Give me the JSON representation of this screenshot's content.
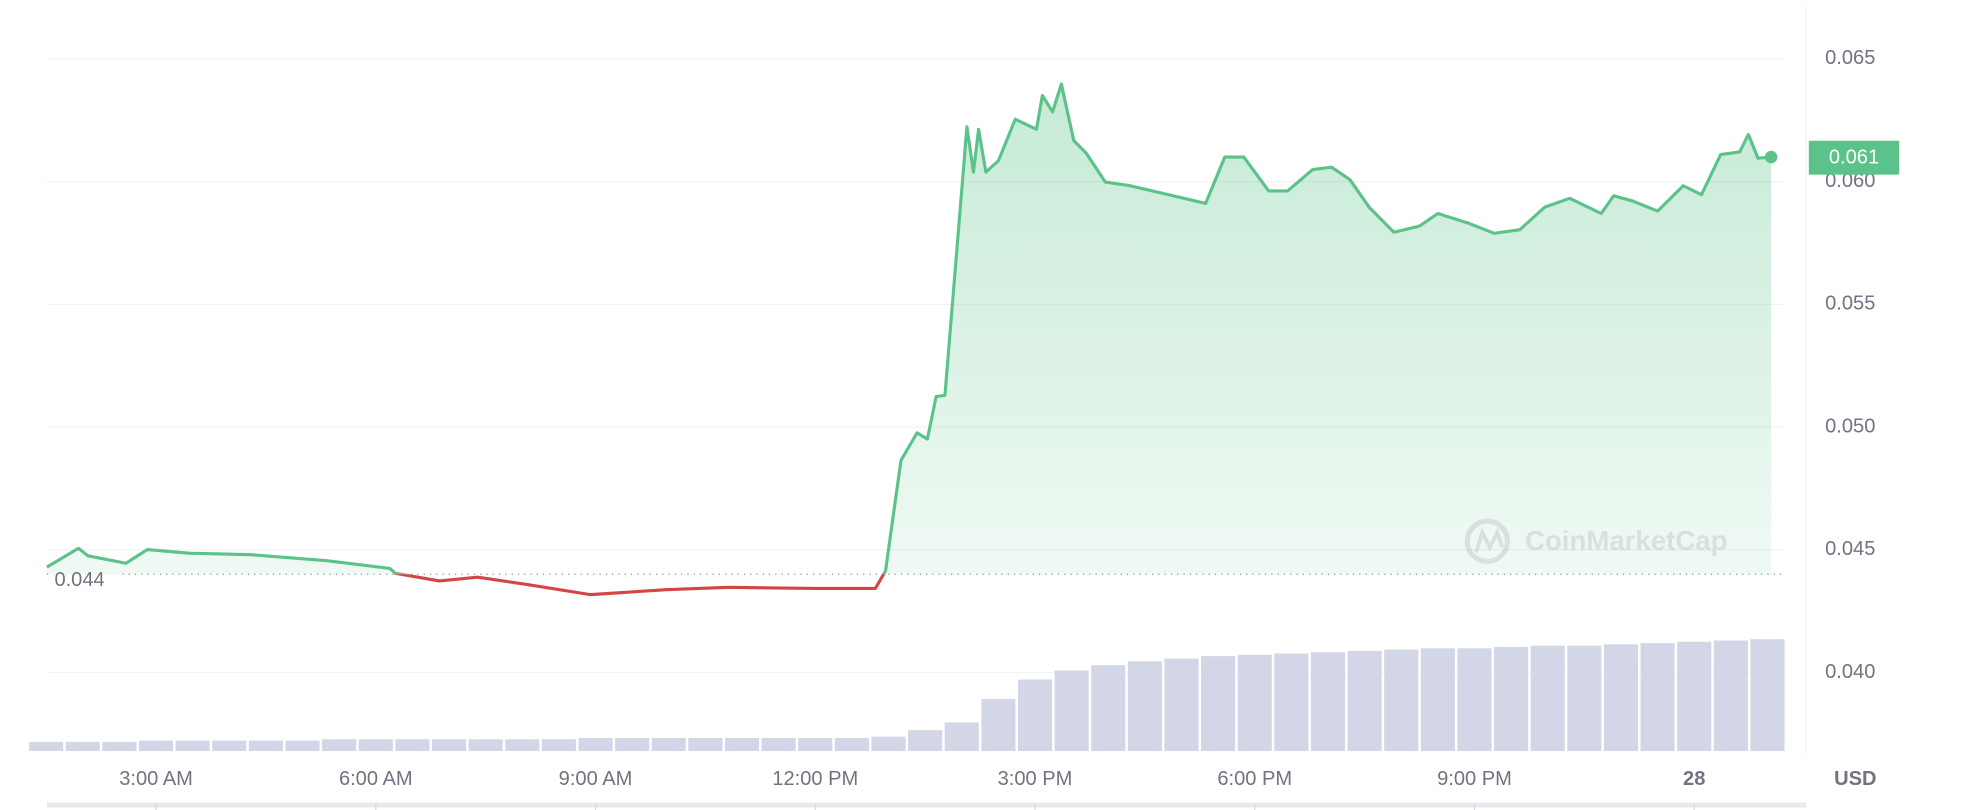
{
  "chart_data": {
    "type": "line",
    "series": [
      {
        "color": "#5bc389",
        "color_below": "#d64545",
        "x": [
          1.51,
          1.94,
          2.07,
          2.59,
          2.88,
          3.45,
          4.3,
          5.33,
          6.19,
          6.27,
          6.87,
          7.39,
          8.07,
          8.93,
          9.96,
          10.82,
          12.02,
          12.82,
          12.96,
          13.17,
          13.39,
          13.53,
          13.65,
          13.77,
          14.07,
          14.16,
          14.23,
          14.33,
          14.5,
          14.73,
          15.02,
          15.1,
          15.24,
          15.36,
          15.53,
          15.7,
          15.96,
          16.3,
          16.82,
          17.33,
          17.59,
          17.85,
          18.19,
          18.45,
          18.79,
          19.05,
          19.3,
          19.56,
          19.9,
          20.25,
          20.5,
          20.93,
          21.27,
          21.62,
          21.96,
          22.3,
          22.73,
          22.9,
          23.16,
          23.5,
          23.85,
          24.1,
          24.36,
          24.62,
          24.74,
          24.87,
          25.05
        ],
        "values": [
          0.04429,
          0.04506,
          0.04475,
          0.04445,
          0.04501,
          0.04486,
          0.0448,
          0.04455,
          0.04424,
          0.04404,
          0.04373,
          0.04388,
          0.04358,
          0.04317,
          0.04337,
          0.04347,
          0.04342,
          0.04342,
          0.04414,
          0.04864,
          0.04976,
          0.04951,
          0.05124,
          0.05129,
          0.06223,
          0.06039,
          0.06213,
          0.06039,
          0.06085,
          0.06254,
          0.06213,
          0.06351,
          0.06284,
          0.06397,
          0.06167,
          0.06116,
          0.05998,
          0.05983,
          0.05947,
          0.05911,
          0.061,
          0.061,
          0.05962,
          0.05962,
          0.06049,
          0.06059,
          0.06008,
          0.05896,
          0.05794,
          0.05819,
          0.0587,
          0.05829,
          0.05789,
          0.05804,
          0.05896,
          0.05932,
          0.0587,
          0.05942,
          0.05921,
          0.0588,
          0.05983,
          0.05947,
          0.0611,
          0.06121,
          0.06192,
          0.06095,
          0.061
        ]
      }
    ],
    "baseline": 0.044,
    "volume": {
      "color": "#d3d6e6",
      "x": [
        1.5,
        2,
        2.5,
        3,
        3.5,
        4,
        4.5,
        5,
        5.5,
        6,
        6.5,
        7,
        7.5,
        8,
        8.5,
        9,
        9.5,
        10,
        10.5,
        11,
        11.5,
        12,
        12.5,
        13,
        13.5,
        14,
        14.5,
        15,
        15.5,
        16,
        16.5,
        17,
        17.5,
        18,
        18.5,
        19,
        19.5,
        20,
        20.5,
        21,
        21.5,
        22,
        22.5,
        23,
        23.5,
        24,
        24.5,
        25
      ],
      "values": [
        7,
        7,
        7,
        8,
        8,
        8,
        8,
        8,
        9,
        9,
        9,
        9,
        9,
        9,
        9,
        10,
        10,
        10,
        10,
        10,
        10,
        10,
        10,
        11,
        16,
        22,
        40,
        55,
        62,
        66,
        69,
        71,
        73,
        74,
        75,
        76,
        77,
        78,
        79,
        79,
        80,
        81,
        81,
        82,
        83,
        84,
        85,
        86
      ]
    },
    "xlim": [
      1.51,
      25.05
    ],
    "xticks": [
      {
        "value": 3,
        "label": "3:00 AM"
      },
      {
        "value": 6,
        "label": "6:00 AM"
      },
      {
        "value": 9,
        "label": "9:00 AM"
      },
      {
        "value": 12,
        "label": "12:00 PM"
      },
      {
        "value": 15,
        "label": "3:00 PM"
      },
      {
        "value": 18,
        "label": "6:00 PM"
      },
      {
        "value": 21,
        "label": "9:00 PM"
      },
      {
        "value": 24,
        "label": "28"
      }
    ],
    "ylim": [
      0.0368,
      0.0674
    ],
    "yticks": [
      {
        "value": 0.04,
        "label": "0.040"
      },
      0.045,
      {
        "value": 0.05,
        "label": "0.050"
      },
      0.055,
      {
        "value": 0.06,
        "label": "0.060"
      },
      0.065
    ],
    "grid": true,
    "y_unit": "USD",
    "watermark": "CoinMarketCap"
  }
}
